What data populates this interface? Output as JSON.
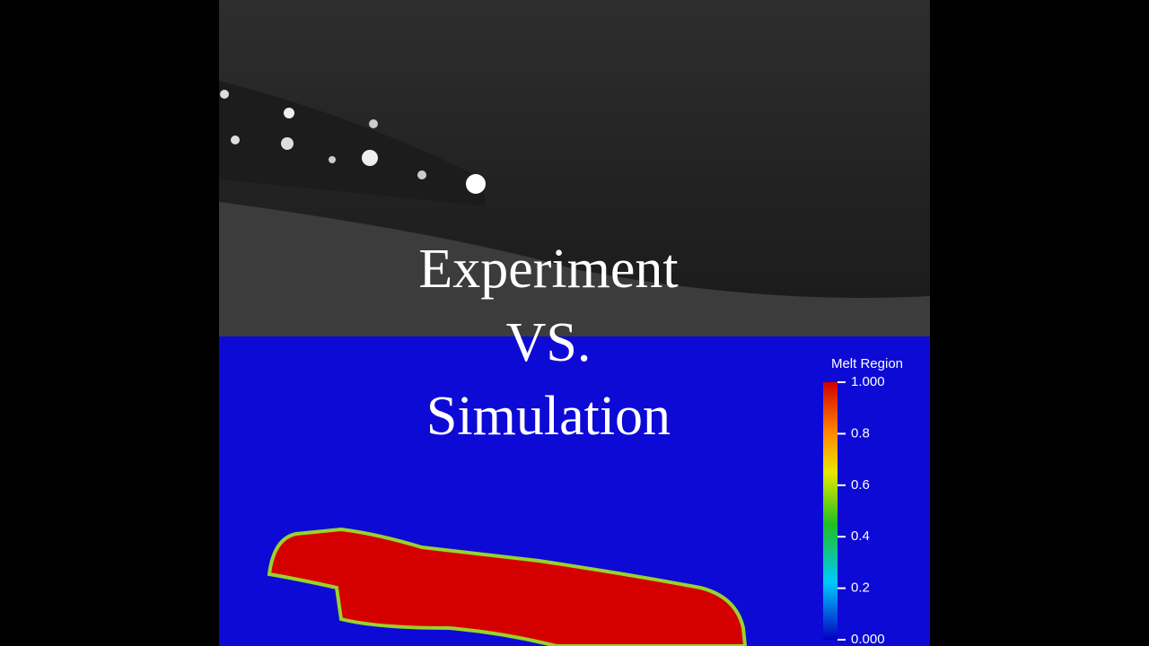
{
  "overlay": {
    "lines": [
      "Experiment",
      "VS.",
      "Simulation"
    ]
  },
  "colorbar": {
    "title": "Melt Region",
    "lim": [
      0,
      1
    ],
    "ticks": [
      {
        "value": 1,
        "label": "1.000"
      },
      0.8,
      0.6,
      0.4,
      0.2,
      {
        "value": 0,
        "label": "0.000"
      }
    ]
  }
}
